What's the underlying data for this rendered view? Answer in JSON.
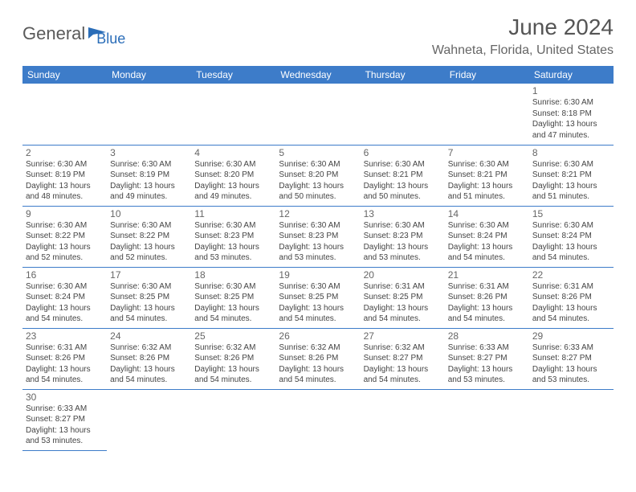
{
  "logo": {
    "part1": "General",
    "part2": "Blue",
    "color1": "#5a5a5a",
    "color2": "#2a6db8"
  },
  "title": "June 2024",
  "location": "Wahneta, Florida, United States",
  "headerBg": "#3d7cc9",
  "weekdays": [
    "Sunday",
    "Monday",
    "Tuesday",
    "Wednesday",
    "Thursday",
    "Friday",
    "Saturday"
  ],
  "textColor": "#444",
  "dayNumColor": "#666",
  "borderColor": "#3d7cc9",
  "cellFontSize": 10,
  "headerFontSize": 12,
  "titleFontSize": 28,
  "days": [
    {
      "n": 1,
      "sr": "6:30 AM",
      "ss": "8:18 PM",
      "dl": "13 hours and 47 minutes."
    },
    {
      "n": 2,
      "sr": "6:30 AM",
      "ss": "8:19 PM",
      "dl": "13 hours and 48 minutes."
    },
    {
      "n": 3,
      "sr": "6:30 AM",
      "ss": "8:19 PM",
      "dl": "13 hours and 49 minutes."
    },
    {
      "n": 4,
      "sr": "6:30 AM",
      "ss": "8:20 PM",
      "dl": "13 hours and 49 minutes."
    },
    {
      "n": 5,
      "sr": "6:30 AM",
      "ss": "8:20 PM",
      "dl": "13 hours and 50 minutes."
    },
    {
      "n": 6,
      "sr": "6:30 AM",
      "ss": "8:21 PM",
      "dl": "13 hours and 50 minutes."
    },
    {
      "n": 7,
      "sr": "6:30 AM",
      "ss": "8:21 PM",
      "dl": "13 hours and 51 minutes."
    },
    {
      "n": 8,
      "sr": "6:30 AM",
      "ss": "8:21 PM",
      "dl": "13 hours and 51 minutes."
    },
    {
      "n": 9,
      "sr": "6:30 AM",
      "ss": "8:22 PM",
      "dl": "13 hours and 52 minutes."
    },
    {
      "n": 10,
      "sr": "6:30 AM",
      "ss": "8:22 PM",
      "dl": "13 hours and 52 minutes."
    },
    {
      "n": 11,
      "sr": "6:30 AM",
      "ss": "8:23 PM",
      "dl": "13 hours and 53 minutes."
    },
    {
      "n": 12,
      "sr": "6:30 AM",
      "ss": "8:23 PM",
      "dl": "13 hours and 53 minutes."
    },
    {
      "n": 13,
      "sr": "6:30 AM",
      "ss": "8:23 PM",
      "dl": "13 hours and 53 minutes."
    },
    {
      "n": 14,
      "sr": "6:30 AM",
      "ss": "8:24 PM",
      "dl": "13 hours and 54 minutes."
    },
    {
      "n": 15,
      "sr": "6:30 AM",
      "ss": "8:24 PM",
      "dl": "13 hours and 54 minutes."
    },
    {
      "n": 16,
      "sr": "6:30 AM",
      "ss": "8:24 PM",
      "dl": "13 hours and 54 minutes."
    },
    {
      "n": 17,
      "sr": "6:30 AM",
      "ss": "8:25 PM",
      "dl": "13 hours and 54 minutes."
    },
    {
      "n": 18,
      "sr": "6:30 AM",
      "ss": "8:25 PM",
      "dl": "13 hours and 54 minutes."
    },
    {
      "n": 19,
      "sr": "6:30 AM",
      "ss": "8:25 PM",
      "dl": "13 hours and 54 minutes."
    },
    {
      "n": 20,
      "sr": "6:31 AM",
      "ss": "8:25 PM",
      "dl": "13 hours and 54 minutes."
    },
    {
      "n": 21,
      "sr": "6:31 AM",
      "ss": "8:26 PM",
      "dl": "13 hours and 54 minutes."
    },
    {
      "n": 22,
      "sr": "6:31 AM",
      "ss": "8:26 PM",
      "dl": "13 hours and 54 minutes."
    },
    {
      "n": 23,
      "sr": "6:31 AM",
      "ss": "8:26 PM",
      "dl": "13 hours and 54 minutes."
    },
    {
      "n": 24,
      "sr": "6:32 AM",
      "ss": "8:26 PM",
      "dl": "13 hours and 54 minutes."
    },
    {
      "n": 25,
      "sr": "6:32 AM",
      "ss": "8:26 PM",
      "dl": "13 hours and 54 minutes."
    },
    {
      "n": 26,
      "sr": "6:32 AM",
      "ss": "8:26 PM",
      "dl": "13 hours and 54 minutes."
    },
    {
      "n": 27,
      "sr": "6:32 AM",
      "ss": "8:27 PM",
      "dl": "13 hours and 54 minutes."
    },
    {
      "n": 28,
      "sr": "6:33 AM",
      "ss": "8:27 PM",
      "dl": "13 hours and 53 minutes."
    },
    {
      "n": 29,
      "sr": "6:33 AM",
      "ss": "8:27 PM",
      "dl": "13 hours and 53 minutes."
    },
    {
      "n": 30,
      "sr": "6:33 AM",
      "ss": "8:27 PM",
      "dl": "13 hours and 53 minutes."
    }
  ],
  "startWeekday": 6,
  "labels": {
    "sunrise": "Sunrise:",
    "sunset": "Sunset:",
    "daylight": "Daylight:"
  }
}
